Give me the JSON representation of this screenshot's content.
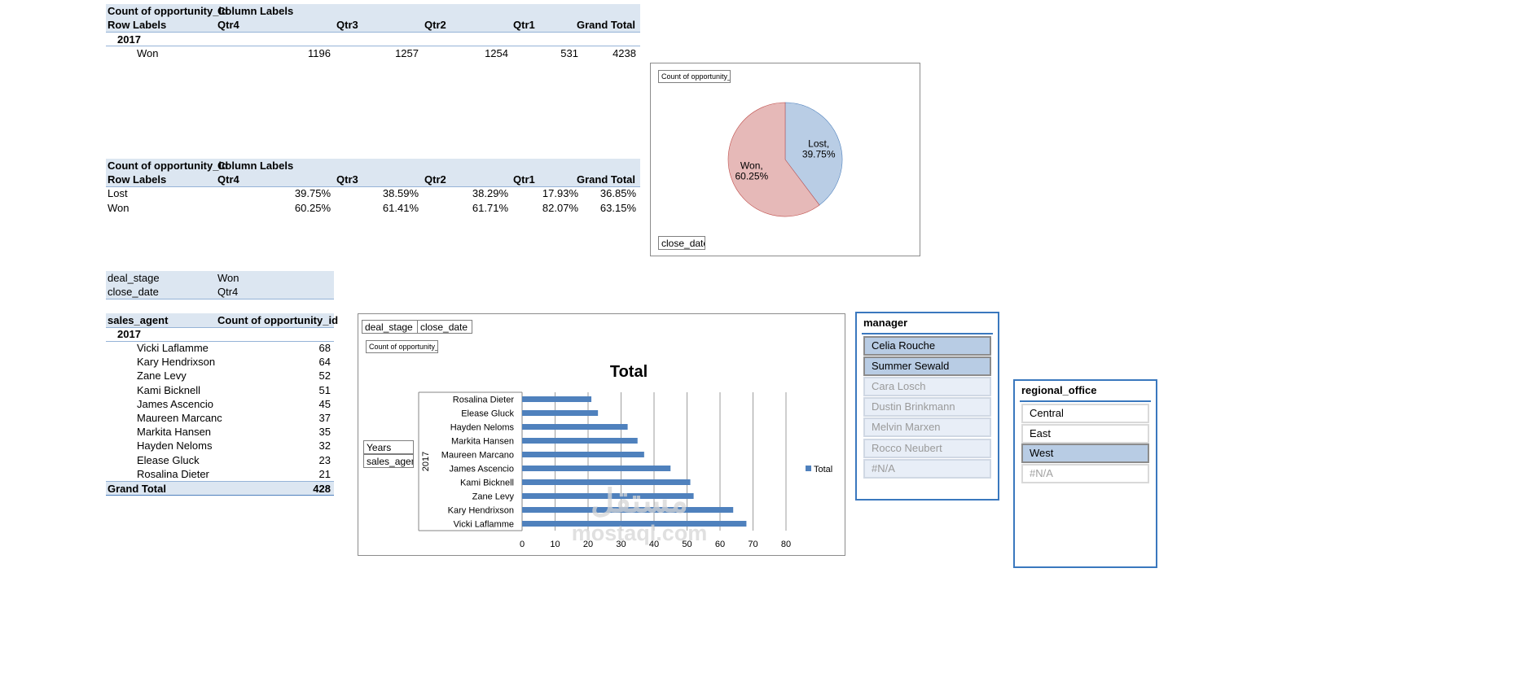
{
  "pivot1": {
    "header_value": "Count of opportunity_id",
    "header_columns": "Column Labels",
    "row_labels": "Row Labels",
    "columns": [
      "Qtr4",
      "Qtr3",
      "Qtr2",
      "Qtr1",
      "Grand Total"
    ],
    "year": "2017",
    "rows": [
      {
        "label": "Won",
        "values": [
          "1196",
          "1257",
          "1254",
          "531",
          "4238"
        ]
      }
    ]
  },
  "pivot2": {
    "header_value": "Count of opportunity_id",
    "header_columns": "Column Labels",
    "row_labels": "Row Labels",
    "columns": [
      "Qtr4",
      "Qtr3",
      "Qtr2",
      "Qtr1",
      "Grand Total"
    ],
    "rows": [
      {
        "label": "Lost",
        "values": [
          "39.75%",
          "38.59%",
          "38.29%",
          "17.93%",
          "36.85%"
        ]
      },
      {
        "label": "Won",
        "values": [
          "60.25%",
          "61.41%",
          "61.71%",
          "82.07%",
          "63.15%"
        ]
      }
    ]
  },
  "filters": [
    {
      "field": "deal_stage",
      "value": "Won"
    },
    {
      "field": "close_date",
      "value": "Qtr4"
    }
  ],
  "pivot3": {
    "row_field": "sales_agent",
    "value_field": "Count of opportunity_id",
    "year": "2017",
    "rows": [
      {
        "label": "Vicki Laflamme",
        "value": "68"
      },
      {
        "label": "Kary Hendrixson",
        "value": "64"
      },
      {
        "label": "Zane Levy",
        "value": "52"
      },
      {
        "label": "Kami Bicknell",
        "value": "51"
      },
      {
        "label": "James Ascencio",
        "value": "45"
      },
      {
        "label": "Maureen Marcanc",
        "value": "37"
      },
      {
        "label": "Markita Hansen",
        "value": "35"
      },
      {
        "label": "Hayden Neloms",
        "value": "32"
      },
      {
        "label": "Elease Gluck",
        "value": "23"
      },
      {
        "label": "Rosalina Dieter",
        "value": "21"
      }
    ],
    "grand_total_label": "Grand Total",
    "grand_total_value": "428"
  },
  "pie_chart": {
    "value_button": "Count of opportunity_id",
    "axis_button": "close_date",
    "colors": {
      "won": "#e6b9b8",
      "lost": "#b9cde5",
      "won_edge": "#c0504d",
      "lost_edge": "#4f81bd"
    }
  },
  "bar_chart": {
    "filter_buttons": [
      "deal_stage",
      "close_date"
    ],
    "value_button": "Count of opportunity_id",
    "row_buttons": [
      "Years",
      "sales_agent"
    ],
    "year_label": "2017",
    "bar_color": "#4f81bd"
  },
  "manager_slicer": {
    "title": "manager",
    "items": [
      {
        "label": "Celia Rouche",
        "state": "selected"
      },
      {
        "label": "Summer Sewald",
        "state": "selected"
      },
      {
        "label": "Cara Losch",
        "state": "nodata"
      },
      {
        "label": "Dustin Brinkmann",
        "state": "nodata"
      },
      {
        "label": "Melvin Marxen",
        "state": "nodata"
      },
      {
        "label": "Rocco Neubert",
        "state": "nodata"
      },
      {
        "label": "#N/A",
        "state": "nodata"
      }
    ]
  },
  "regional_slicer": {
    "title": "regional_office",
    "items": [
      {
        "label": "Central",
        "state": "unselected"
      },
      {
        "label": "East",
        "state": "unselected"
      },
      {
        "label": "West",
        "state": "selected"
      },
      {
        "label": "#N/A",
        "state": "nodata-white"
      }
    ]
  },
  "watermark": {
    "line1": "مستقل",
    "line2": "mostaql.com"
  },
  "chart_data": [
    {
      "type": "pie",
      "labels": [
        "Lost",
        "Won"
      ],
      "values": [
        39.75,
        60.25
      ],
      "data_labels": [
        "Lost,\n39.75%",
        "Won,\n60.25%"
      ],
      "title": ""
    },
    {
      "type": "bar",
      "orientation": "horizontal",
      "title": "Total",
      "categories": [
        "Rosalina Dieter",
        "Elease Gluck",
        "Hayden Neloms",
        "Markita Hansen",
        "Maureen Marcano",
        "James Ascencio",
        "Kami Bicknell",
        "Zane Levy",
        "Kary Hendrixson",
        "Vicki Laflamme"
      ],
      "series": [
        {
          "name": "Total",
          "values": [
            21,
            23,
            32,
            35,
            37,
            45,
            51,
            52,
            64,
            68
          ]
        }
      ],
      "xlim": [
        0,
        80
      ],
      "ticks": [
        "0",
        "10",
        "20",
        "30",
        "40",
        "50",
        "60",
        "70",
        "80"
      ],
      "grid": true,
      "legend_position": "right"
    }
  ]
}
